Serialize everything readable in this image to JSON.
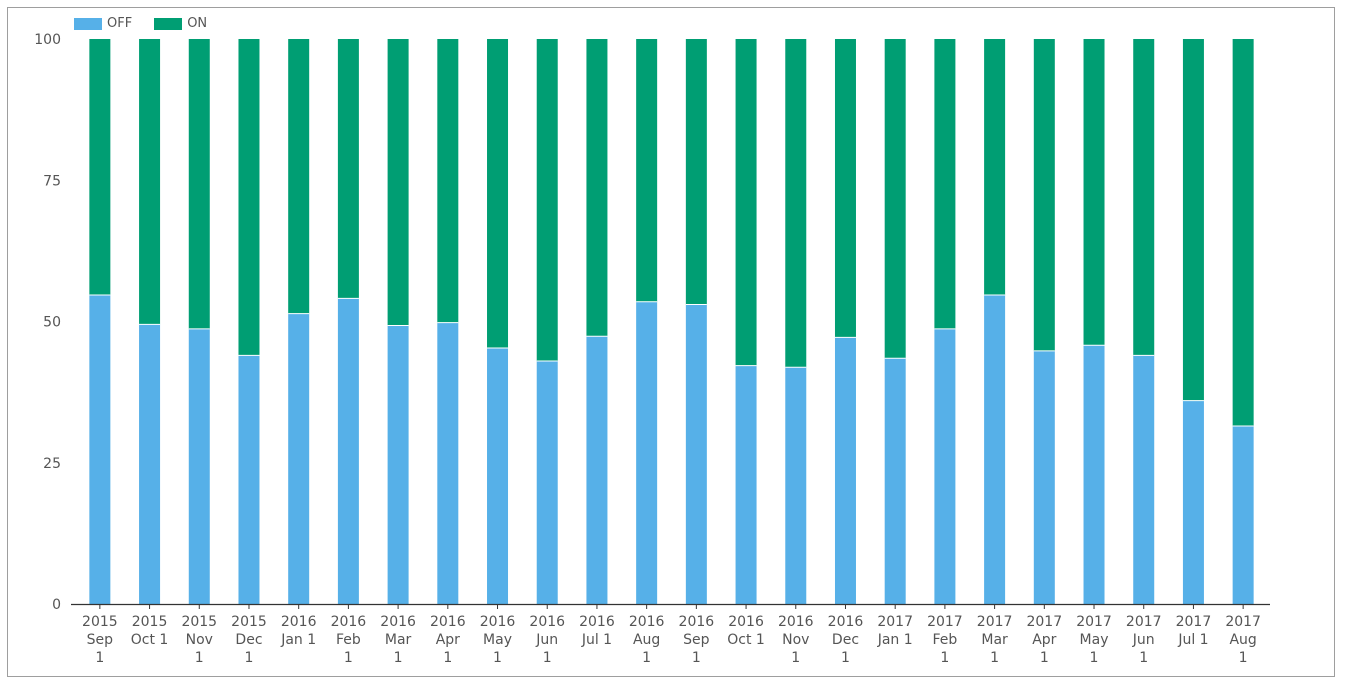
{
  "chart_data": {
    "type": "bar",
    "stacked": true,
    "legend_position": "top-left",
    "ylim": [
      0,
      100
    ],
    "yticks": [
      0,
      25,
      50,
      75,
      100
    ],
    "grid": false,
    "categories": [
      [
        "2015",
        "Sep",
        "1"
      ],
      [
        "2015",
        "Oct 1"
      ],
      [
        "2015",
        "Nov",
        "1"
      ],
      [
        "2015",
        "Dec",
        "1"
      ],
      [
        "2016",
        "Jan 1"
      ],
      [
        "2016",
        "Feb",
        "1"
      ],
      [
        "2016",
        "Mar",
        "1"
      ],
      [
        "2016",
        "Apr",
        "1"
      ],
      [
        "2016",
        "May",
        "1"
      ],
      [
        "2016",
        "Jun",
        "1"
      ],
      [
        "2016",
        "Jul 1"
      ],
      [
        "2016",
        "Aug",
        "1"
      ],
      [
        "2016",
        "Sep",
        "1"
      ],
      [
        "2016",
        "Oct 1"
      ],
      [
        "2016",
        "Nov",
        "1"
      ],
      [
        "2016",
        "Dec",
        "1"
      ],
      [
        "2017",
        "Jan 1"
      ],
      [
        "2017",
        "Feb",
        "1"
      ],
      [
        "2017",
        "Mar",
        "1"
      ],
      [
        "2017",
        "Apr",
        "1"
      ],
      [
        "2017",
        "May",
        "1"
      ],
      [
        "2017",
        "Jun",
        "1"
      ],
      [
        "2017",
        "Jul 1"
      ],
      [
        "2017",
        "Aug",
        "1"
      ]
    ],
    "series": [
      {
        "name": "OFF",
        "color": "#56b0e8",
        "values": [
          54.7,
          49.5,
          48.7,
          44.0,
          51.4,
          54.1,
          49.3,
          49.8,
          45.3,
          43.0,
          47.4,
          53.5,
          53.0,
          42.2,
          41.9,
          47.2,
          43.5,
          48.7,
          54.7,
          44.8,
          45.8,
          44.0,
          36.0,
          31.5
        ]
      },
      {
        "name": "ON",
        "color": "#009e73",
        "values": [
          45.3,
          50.5,
          51.3,
          56.0,
          48.6,
          45.9,
          50.7,
          50.2,
          54.7,
          57.0,
          52.6,
          46.5,
          47.0,
          57.8,
          58.1,
          52.8,
          56.5,
          51.3,
          45.3,
          55.2,
          54.2,
          56.0,
          64.0,
          68.5
        ]
      }
    ]
  }
}
